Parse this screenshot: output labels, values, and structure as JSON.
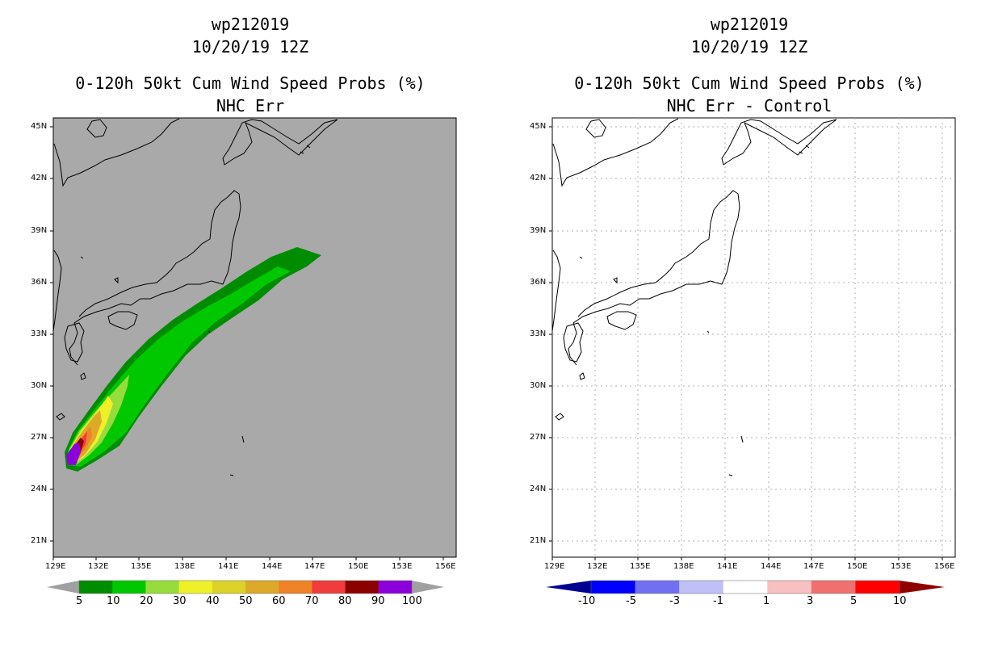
{
  "left_panel": {
    "storm_id": "wp212019",
    "datetime": "10/20/19 12Z",
    "product": "0-120h 50kt Cum Wind Speed Probs (%)",
    "subtitle": "NHC Err",
    "colorbar": {
      "labels": [
        "5",
        "10",
        "20",
        "30",
        "40",
        "50",
        "60",
        "70",
        "80",
        "90",
        "100"
      ],
      "colors": [
        "#008c00",
        "#00c800",
        "#96dc3c",
        "#f0f028",
        "#dcd228",
        "#dcaa28",
        "#f08228",
        "#f03c3c",
        "#8c0000",
        "#8c00dc"
      ],
      "end_low": "#a0a0a0",
      "end_high": "#a0a0a0"
    },
    "background": "#a9a9a9"
  },
  "right_panel": {
    "storm_id": "wp212019",
    "datetime": "10/20/19 12Z",
    "product": "0-120h 50kt Cum Wind Speed Probs (%)",
    "subtitle": "NHC Err - Control",
    "colorbar": {
      "labels": [
        "-10",
        "-5",
        "-3",
        "-1",
        "1",
        "3",
        "5",
        "10"
      ],
      "colors": [
        "#0000ff",
        "#7070f0",
        "#c0c0f8",
        "#ffffff",
        "#f8c0c0",
        "#f07070",
        "#ff0000"
      ],
      "end_low": "#000090",
      "end_high": "#900000"
    },
    "background": "#ffffff"
  },
  "map": {
    "lat_labels": [
      "45N",
      "42N",
      "39N",
      "36N",
      "33N",
      "30N",
      "27N",
      "24N",
      "21N"
    ],
    "lon_labels": [
      "129E",
      "132E",
      "135E",
      "138E",
      "141E",
      "144E",
      "147E",
      "150E",
      "153E",
      "156E"
    ]
  }
}
